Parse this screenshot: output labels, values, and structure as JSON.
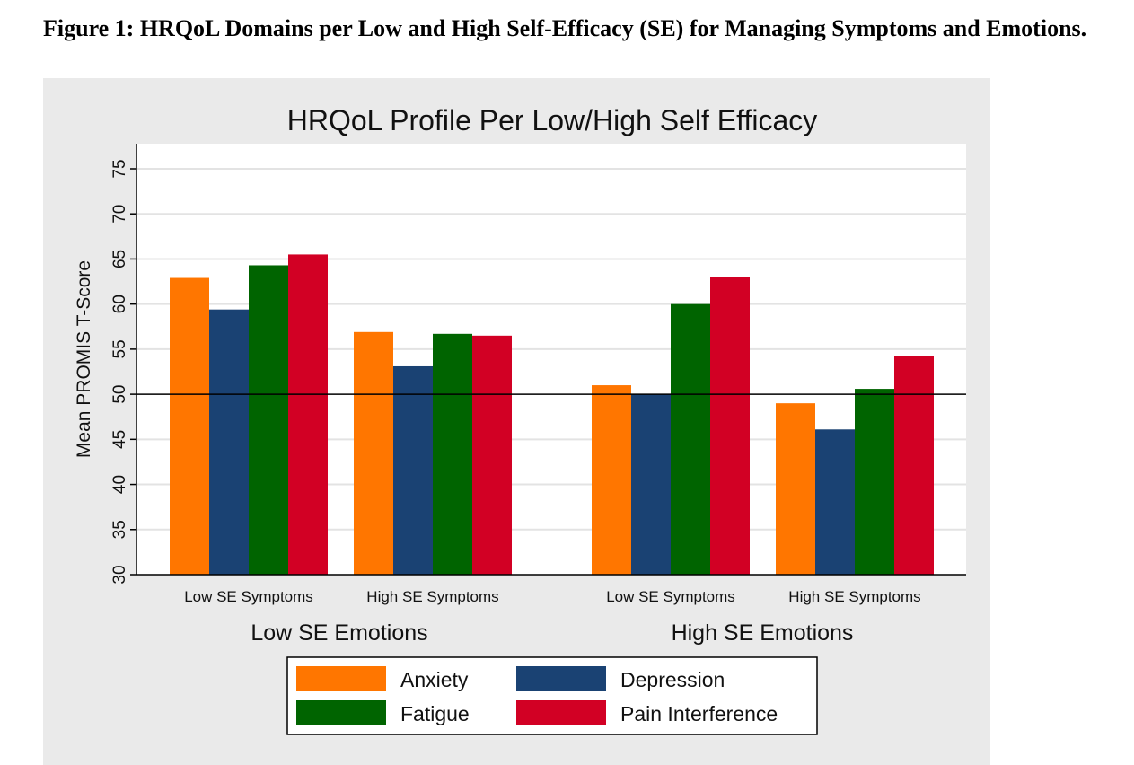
{
  "caption": "Figure 1: HRQoL Domains per Low and High Self-Efficacy (SE) for Managing Symptoms and Emotions.",
  "chart_data": {
    "type": "bar",
    "title": "HRQoL Profile Per Low/High Self Efficacy",
    "ylabel": "Mean PROMIS T-Score",
    "xlabel": "",
    "ylim": [
      30,
      77
    ],
    "yticks": [
      30,
      35,
      40,
      45,
      50,
      55,
      60,
      65,
      70,
      75
    ],
    "reference_line": 50,
    "grid": true,
    "outer_groups": [
      "Low SE Emotions",
      "High SE Emotions"
    ],
    "categories": [
      "Low SE Symptoms",
      "High SE Symptoms",
      "Low SE Symptoms",
      "High SE Symptoms"
    ],
    "series": [
      {
        "name": "Anxiety",
        "color": "#ff7600",
        "values": [
          62.9,
          56.9,
          51.0,
          49.0
        ]
      },
      {
        "name": "Depression",
        "color": "#1a4273",
        "values": [
          59.4,
          53.1,
          50.0,
          46.1
        ]
      },
      {
        "name": "Fatigue",
        "color": "#006400",
        "values": [
          64.3,
          56.7,
          60.0,
          50.6
        ]
      },
      {
        "name": "Pain Interference",
        "color": "#d20024",
        "values": [
          65.5,
          56.5,
          63.0,
          54.2
        ]
      }
    ],
    "legend_position": "bottom"
  }
}
